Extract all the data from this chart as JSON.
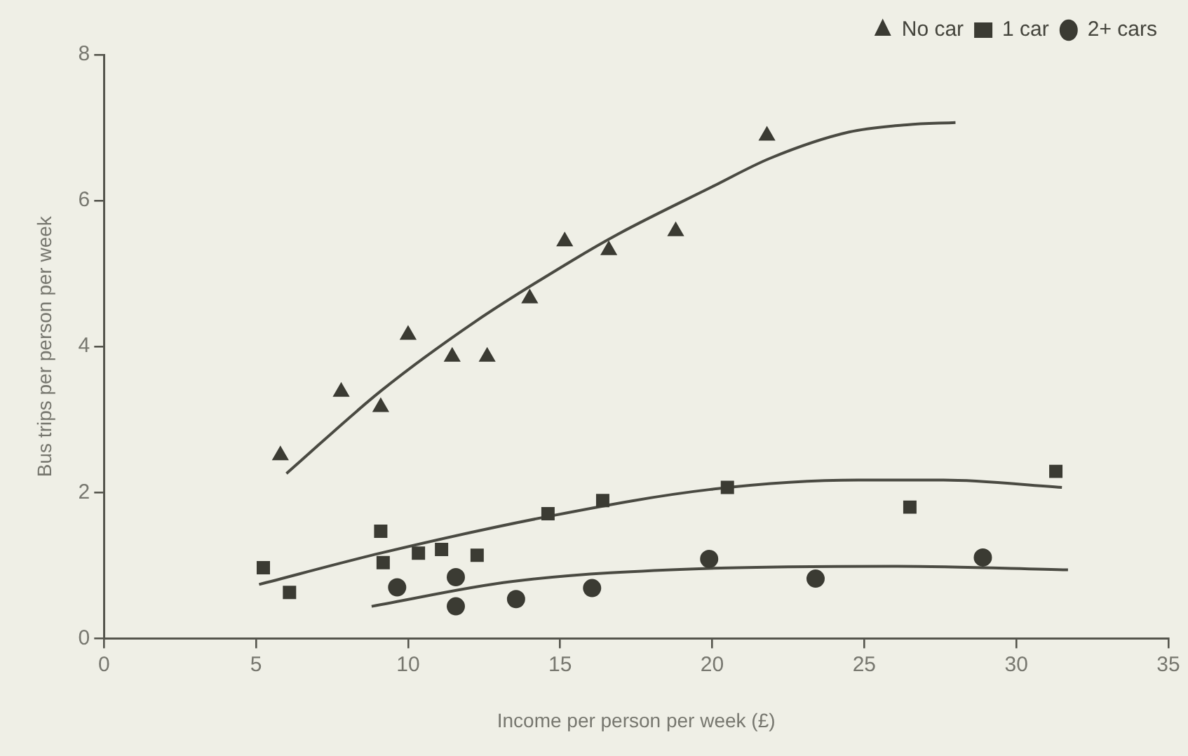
{
  "chart_data": {
    "type": "scatter",
    "xlabel": "Income per person per week (£)",
    "ylabel": "Bus trips per person per week",
    "xlim": [
      0,
      35
    ],
    "xticks": [
      0,
      5,
      10,
      15,
      20,
      25,
      30,
      35
    ],
    "ylim": [
      0,
      8
    ],
    "yticks": [
      0,
      2,
      4,
      6,
      8
    ],
    "grid": false,
    "legend": "top right",
    "series": [
      {
        "name": "No car",
        "color": "#3b3b33",
        "marker": "triangle",
        "x": [
          5.8,
          7.8,
          9.1,
          10.0,
          11.45,
          12.6,
          14.0,
          15.15,
          16.6,
          18.8,
          21.8
        ],
        "values": [
          2.51,
          3.38,
          3.17,
          4.16,
          3.86,
          3.86,
          4.66,
          5.44,
          5.32,
          5.58,
          6.89
        ]
      },
      {
        "name": "1 car",
        "color": "#3b3b33",
        "marker": "square",
        "x": [
          5.24,
          6.1,
          9.1,
          9.18,
          10.34,
          11.1,
          12.27,
          14.6,
          16.4,
          20.5,
          26.5,
          31.3
        ],
        "values": [
          0.97,
          0.63,
          1.47,
          1.04,
          1.17,
          1.22,
          1.14,
          1.71,
          1.89,
          2.07,
          1.8,
          2.29
        ]
      },
      {
        "name": "2+ cars",
        "color": "#3b3b33",
        "marker": "circle",
        "x": [
          9.64,
          11.57,
          11.57,
          13.55,
          16.05,
          19.9,
          23.4,
          28.9
        ],
        "values": [
          0.7,
          0.84,
          0.44,
          0.54,
          0.69,
          1.09,
          0.82,
          1.11
        ]
      },
      {
        "type": "line",
        "color": "#4a4a42",
        "marker": "none",
        "x": [
          6.0,
          9.1,
          12.2,
          15.4,
          16.9,
          20.0,
          21.9,
          24.5,
          26.4,
          28.0
        ],
        "values": [
          2.26,
          3.39,
          4.34,
          5.18,
          5.54,
          6.19,
          6.58,
          6.94,
          7.04,
          7.07
        ]
      },
      {
        "type": "line",
        "color": "#4a4a42",
        "marker": "none",
        "x": [
          5.1,
          9.1,
          14.7,
          19.9,
          24.8,
          27.6,
          31.5
        ],
        "values": [
          0.74,
          1.17,
          1.68,
          2.04,
          2.17,
          2.17,
          2.07
        ]
      },
      {
        "type": "line",
        "color": "#4a4a42",
        "marker": "none",
        "x": [
          8.8,
          13.4,
          19.9,
          26.1,
          31.7
        ],
        "values": [
          0.44,
          0.78,
          0.96,
          0.99,
          0.94
        ]
      }
    ]
  }
}
